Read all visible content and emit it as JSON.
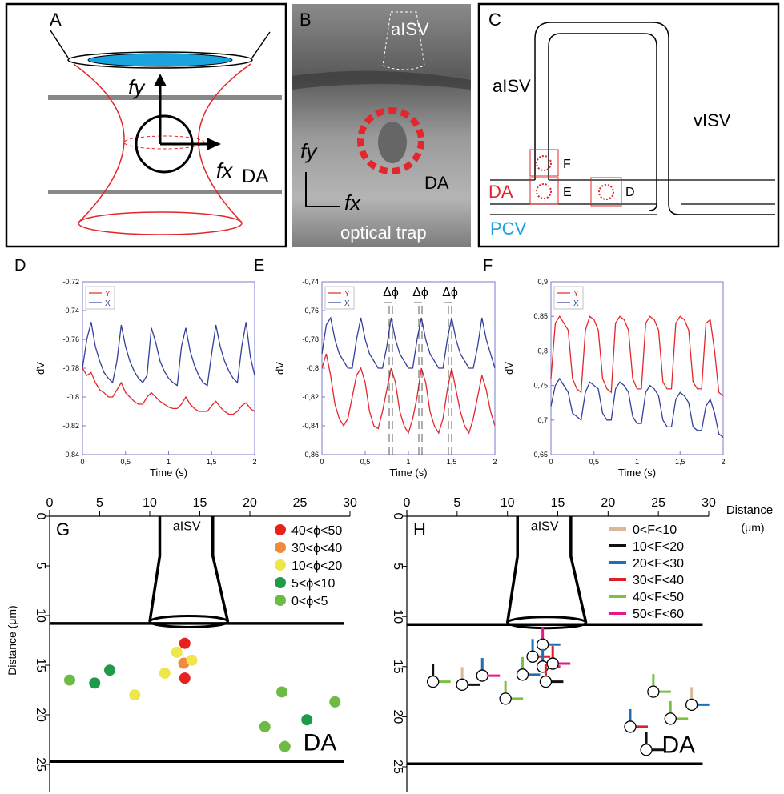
{
  "panels": {
    "A": {
      "label": "A",
      "fy": "fy",
      "fx": "fx",
      "vessel": "DA"
    },
    "B": {
      "label": "B",
      "vessel_top": "aISV",
      "fy": "fy",
      "fx": "fx",
      "vessel": "DA",
      "caption": "optical trap"
    },
    "C": {
      "label": "C",
      "aisv": "aISV",
      "visv": "vISV",
      "box_f": "F",
      "box_e": "E",
      "box_d": "D",
      "da": "DA",
      "pcv": "PCV"
    }
  },
  "chart_data": [
    {
      "type": "line",
      "label": "D",
      "xlabel": "Time (s)",
      "ylabel": "dV",
      "x": [
        0,
        0.05,
        0.1,
        0.15,
        0.2,
        0.25,
        0.3,
        0.35,
        0.4,
        0.45,
        0.5,
        0.55,
        0.6,
        0.65,
        0.7,
        0.75,
        0.8,
        0.85,
        0.9,
        0.95,
        1,
        1.05,
        1.1,
        1.15,
        1.2,
        1.25,
        1.3,
        1.35,
        1.4,
        1.45,
        1.5,
        1.55,
        1.6,
        1.65,
        1.7,
        1.75,
        1.8,
        1.85,
        1.9,
        1.95,
        2
      ],
      "series": [
        {
          "name": "Y",
          "color": "#e3262b",
          "values": [
            -0.78,
            -0.785,
            -0.783,
            -0.79,
            -0.795,
            -0.797,
            -0.8,
            -0.8,
            -0.795,
            -0.79,
            -0.797,
            -0.8,
            -0.803,
            -0.805,
            -0.805,
            -0.8,
            -0.797,
            -0.8,
            -0.803,
            -0.805,
            -0.807,
            -0.808,
            -0.808,
            -0.805,
            -0.8,
            -0.805,
            -0.808,
            -0.81,
            -0.81,
            -0.81,
            -0.806,
            -0.803,
            -0.807,
            -0.81,
            -0.812,
            -0.812,
            -0.81,
            -0.806,
            -0.804,
            -0.808,
            -0.81
          ]
        },
        {
          "name": "X",
          "color": "#33409a",
          "values": [
            -0.78,
            -0.76,
            -0.748,
            -0.765,
            -0.775,
            -0.783,
            -0.787,
            -0.79,
            -0.775,
            -0.75,
            -0.765,
            -0.775,
            -0.782,
            -0.787,
            -0.79,
            -0.785,
            -0.752,
            -0.762,
            -0.775,
            -0.782,
            -0.787,
            -0.79,
            -0.792,
            -0.765,
            -0.752,
            -0.768,
            -0.778,
            -0.785,
            -0.79,
            -0.792,
            -0.77,
            -0.75,
            -0.765,
            -0.775,
            -0.782,
            -0.787,
            -0.79,
            -0.765,
            -0.748,
            -0.772,
            -0.785
          ]
        }
      ],
      "xlim": [
        0,
        2
      ],
      "xticks": [
        0,
        {
          "value": 0.5,
          "label": "0,5"
        },
        1,
        {
          "value": 1.5,
          "label": "1,5"
        },
        2
      ],
      "ylim": [
        -0.84,
        -0.72
      ],
      "yticks": [
        {
          "value": -0.84,
          "label": "-0,84"
        },
        {
          "value": -0.82,
          "label": "-0,82"
        },
        {
          "value": -0.8,
          "label": "-0,8"
        },
        {
          "value": -0.78,
          "label": "-0,78"
        },
        {
          "value": -0.76,
          "label": "-0,76"
        },
        {
          "value": -0.74,
          "label": "-0,74"
        },
        {
          "value": -0.72,
          "label": "-0,72"
        }
      ]
    },
    {
      "type": "line",
      "label": "E",
      "xlabel": "Time (s)",
      "ylabel": "dV",
      "annotations": [
        "Δϕ",
        "Δϕ",
        "Δϕ"
      ],
      "x": [
        0,
        0.05,
        0.1,
        0.15,
        0.2,
        0.25,
        0.3,
        0.35,
        0.4,
        0.45,
        0.5,
        0.55,
        0.6,
        0.65,
        0.7,
        0.75,
        0.8,
        0.85,
        0.9,
        0.95,
        1,
        1.05,
        1.1,
        1.15,
        1.2,
        1.25,
        1.3,
        1.35,
        1.4,
        1.45,
        1.5,
        1.55,
        1.6,
        1.65,
        1.7,
        1.75,
        1.8,
        1.85,
        1.9,
        1.95,
        2
      ],
      "series": [
        {
          "name": "Y",
          "color": "#e3262b",
          "values": [
            -0.8,
            -0.79,
            -0.805,
            -0.825,
            -0.835,
            -0.84,
            -0.835,
            -0.82,
            -0.805,
            -0.8,
            -0.81,
            -0.83,
            -0.84,
            -0.842,
            -0.83,
            -0.815,
            -0.8,
            -0.81,
            -0.83,
            -0.84,
            -0.845,
            -0.835,
            -0.82,
            -0.8,
            -0.81,
            -0.83,
            -0.84,
            -0.845,
            -0.835,
            -0.815,
            -0.8,
            -0.815,
            -0.83,
            -0.84,
            -0.845,
            -0.835,
            -0.82,
            -0.805,
            -0.815,
            -0.83,
            -0.84
          ]
        },
        {
          "name": "X",
          "color": "#33409a",
          "values": [
            -0.79,
            -0.77,
            -0.765,
            -0.78,
            -0.79,
            -0.795,
            -0.8,
            -0.8,
            -0.78,
            -0.765,
            -0.78,
            -0.79,
            -0.795,
            -0.8,
            -0.8,
            -0.785,
            -0.765,
            -0.78,
            -0.79,
            -0.795,
            -0.8,
            -0.8,
            -0.78,
            -0.765,
            -0.78,
            -0.79,
            -0.795,
            -0.8,
            -0.8,
            -0.78,
            -0.765,
            -0.78,
            -0.79,
            -0.795,
            -0.8,
            -0.8,
            -0.785,
            -0.765,
            -0.78,
            -0.79,
            -0.8
          ]
        }
      ],
      "xlim": [
        0,
        2
      ],
      "xticks": [
        0,
        {
          "value": 0.5,
          "label": "0,5"
        },
        1,
        {
          "value": 1.5,
          "label": "1,5"
        },
        2
      ],
      "ylim": [
        -0.86,
        -0.74
      ],
      "yticks": [
        {
          "value": -0.86,
          "label": "-0,86"
        },
        {
          "value": -0.84,
          "label": "-0,84"
        },
        {
          "value": -0.82,
          "label": "-0,82"
        },
        {
          "value": -0.8,
          "label": "-0,8"
        },
        {
          "value": -0.78,
          "label": "-0,78"
        },
        {
          "value": -0.76,
          "label": "-0,76"
        },
        {
          "value": -0.74,
          "label": "-0,74"
        }
      ]
    },
    {
      "type": "line",
      "label": "F",
      "xlabel": "Time (s)",
      "ylabel": "dV",
      "x": [
        0,
        0.05,
        0.1,
        0.15,
        0.2,
        0.25,
        0.3,
        0.35,
        0.4,
        0.45,
        0.5,
        0.55,
        0.6,
        0.65,
        0.7,
        0.75,
        0.8,
        0.85,
        0.9,
        0.95,
        1,
        1.05,
        1.1,
        1.15,
        1.2,
        1.25,
        1.3,
        1.35,
        1.4,
        1.45,
        1.5,
        1.55,
        1.6,
        1.65,
        1.7,
        1.75,
        1.8,
        1.85,
        1.9,
        1.95,
        2
      ],
      "series": [
        {
          "name": "Y",
          "color": "#e3262b",
          "values": [
            0.76,
            0.84,
            0.85,
            0.84,
            0.83,
            0.76,
            0.745,
            0.74,
            0.83,
            0.85,
            0.845,
            0.83,
            0.76,
            0.745,
            0.74,
            0.84,
            0.85,
            0.845,
            0.83,
            0.76,
            0.745,
            0.745,
            0.84,
            0.85,
            0.845,
            0.83,
            0.755,
            0.745,
            0.745,
            0.84,
            0.85,
            0.845,
            0.83,
            0.755,
            0.745,
            0.745,
            0.84,
            0.845,
            0.8,
            0.74,
            0.735
          ]
        },
        {
          "name": "X",
          "color": "#33409a",
          "values": [
            0.72,
            0.75,
            0.76,
            0.75,
            0.74,
            0.71,
            0.705,
            0.7,
            0.74,
            0.755,
            0.75,
            0.745,
            0.71,
            0.7,
            0.7,
            0.745,
            0.755,
            0.75,
            0.74,
            0.705,
            0.695,
            0.695,
            0.74,
            0.75,
            0.745,
            0.735,
            0.7,
            0.69,
            0.69,
            0.73,
            0.74,
            0.735,
            0.725,
            0.69,
            0.685,
            0.685,
            0.72,
            0.73,
            0.71,
            0.68,
            0.675
          ]
        }
      ],
      "xlim": [
        0,
        2
      ],
      "xticks": [
        0,
        {
          "value": 0.5,
          "label": "0,5"
        },
        1,
        {
          "value": 1.5,
          "label": "1,5"
        },
        2
      ],
      "ylim": [
        0.65,
        0.9
      ],
      "yticks": [
        {
          "value": 0.65,
          "label": "0,65"
        },
        {
          "value": 0.7,
          "label": "0,7"
        },
        {
          "value": 0.75,
          "label": "0,75"
        },
        {
          "value": 0.8,
          "label": "0,8"
        },
        {
          "value": 0.85,
          "label": "0,85"
        },
        {
          "value": 0.9,
          "label": "0,9"
        }
      ]
    },
    {
      "type": "scatter",
      "label": "G",
      "ylabel": "Distance (μm)",
      "vessel_top": "aISV",
      "vessel": "DA",
      "series": [
        {
          "name": "40<ϕ<50",
          "color": "#e8211e",
          "x": [
            13.5,
            13.5
          ],
          "y": [
            12.8,
            16.3
          ]
        },
        {
          "name": "30<ϕ<40",
          "color": "#f08a3c",
          "x": [
            13.4
          ],
          "y": [
            14.8
          ]
        },
        {
          "name": "10<ϕ<20",
          "color": "#eee64a",
          "x": [
            8.5,
            11.5,
            12.7,
            14.2
          ],
          "y": [
            18,
            15.8,
            13.7,
            14.5
          ]
        },
        {
          "name": "5<ϕ<10",
          "color": "#1f9a48",
          "x": [
            4.5,
            6,
            25.7
          ],
          "y": [
            16.8,
            15.5,
            20.5
          ]
        },
        {
          "name": "0<ϕ<5",
          "color": "#6dbb45",
          "x": [
            2,
            21.5,
            23.2,
            28.5,
            23.5
          ],
          "y": [
            16.5,
            21.2,
            17.7,
            18.7,
            23.2
          ]
        }
      ],
      "xlim": [
        0,
        30
      ],
      "xticks": [
        0,
        5,
        10,
        15,
        20,
        25,
        30
      ],
      "ylim": [
        0,
        25
      ],
      "yticks": [
        0,
        5,
        10,
        15,
        20,
        25
      ]
    },
    {
      "type": "vector",
      "label": "H",
      "xlabel": "Distance",
      "xlabel_unit": "(μm)",
      "vessel_top": "aISV",
      "vessel": "DA",
      "legend": [
        {
          "name": "0<F<10",
          "color": "#d9b89a"
        },
        {
          "name": "10<F<20",
          "color": "#111111"
        },
        {
          "name": "20<F<30",
          "color": "#1f6fb4"
        },
        {
          "name": "30<F<40",
          "color": "#e02028"
        },
        {
          "name": "40<F<50",
          "color": "#7ac143"
        },
        {
          "name": "50<F<60",
          "color": "#e6198a"
        }
      ],
      "points": {
        "x": [
          2.6,
          5.5,
          7.5,
          9.8,
          11.5,
          12.5,
          13.5,
          13.5,
          14.5,
          13.8,
          22.2,
          23.8,
          24.5,
          26.2,
          28.3
        ],
        "y": [
          16.5,
          16.8,
          15.9,
          18.2,
          15.8,
          14,
          12.8,
          15,
          14.7,
          16.5,
          21,
          23.3,
          17.5,
          20.2,
          18.8
        ],
        "fy_bin": [
          1,
          0,
          2,
          4,
          4,
          2,
          5,
          2,
          3,
          3,
          2,
          1,
          4,
          4,
          0
        ],
        "fx_bin": [
          4,
          1,
          5,
          4,
          2,
          3,
          2,
          5,
          5,
          1,
          3,
          1,
          4,
          4,
          2
        ]
      },
      "xlim": [
        0,
        30
      ],
      "xticks": [
        0,
        5,
        10,
        15,
        20,
        25,
        30
      ],
      "ylim": [
        0,
        25
      ],
      "yticks": [
        0,
        5,
        10,
        15,
        20,
        25
      ]
    }
  ]
}
